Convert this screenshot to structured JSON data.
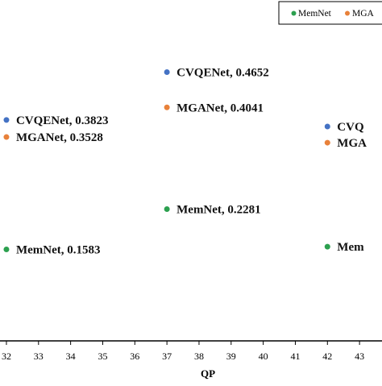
{
  "chart_data": {
    "type": "scatter",
    "title": "",
    "xlabel": "QP",
    "ylabel": "",
    "xlim": [
      31.8,
      43.7
    ],
    "ylim": [
      0,
      0.59
    ],
    "x_ticks": [
      32,
      33,
      34,
      35,
      36,
      37,
      38,
      39,
      40,
      41,
      42,
      43
    ],
    "grid": false,
    "legend_position": "top-right",
    "series": [
      {
        "name": "MemNet",
        "color": "#2ca04f",
        "points": [
          {
            "x": 32,
            "y": 0.1583,
            "label": "MemNet, 0.1583"
          },
          {
            "x": 37,
            "y": 0.2281,
            "label": "MemNet, 0.2281"
          },
          {
            "x": 42,
            "y": 0.163,
            "label": "Mem"
          }
        ]
      },
      {
        "name": "MGA",
        "color": "#e8813a",
        "points": [
          {
            "x": 32,
            "y": 0.3528,
            "label": "MGANet, 0.3528"
          },
          {
            "x": 37,
            "y": 0.4041,
            "label": "MGANet, 0.4041"
          },
          {
            "x": 42,
            "y": 0.343,
            "label": "MGA"
          }
        ]
      },
      {
        "name": "",
        "color": "#4472c4",
        "points": [
          {
            "x": 32,
            "y": 0.3823,
            "label": "CVQENet, 0.3823"
          },
          {
            "x": 37,
            "y": 0.4652,
            "label": "CVQENet, 0.4652"
          },
          {
            "x": 42,
            "y": 0.371,
            "label": "CVQ"
          }
        ]
      }
    ]
  }
}
